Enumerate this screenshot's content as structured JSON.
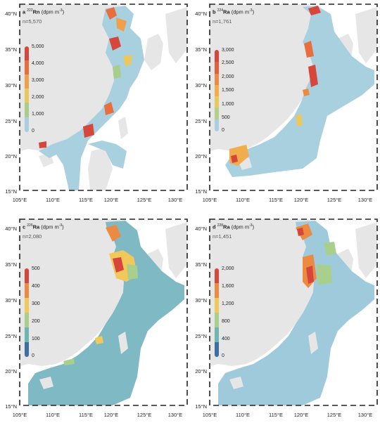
{
  "panels": [
    {
      "letter": "a",
      "isotope_mass": "222",
      "element": "Rn",
      "unit": "(dpm m",
      "unit_exp": "-3",
      "count": "n=5,570",
      "colorbar_ticks": [
        "5,000",
        "4,000",
        "3,000",
        "2,000",
        "1,000",
        "0"
      ],
      "colorbar_colors": [
        "#d7463a",
        "#e86e3e",
        "#f0a04a",
        "#e9c85f",
        "#a8ce8a",
        "#a9d0de"
      ]
    },
    {
      "letter": "b",
      "isotope_mass": "224",
      "element": "Ra",
      "unit": "(dpm m",
      "unit_exp": "-3",
      "count": "n=1,761",
      "colorbar_ticks": [
        "3,000",
        "2,500",
        "2,000",
        "1,500",
        "1,000",
        "500",
        "0"
      ],
      "colorbar_colors": [
        "#d7463a",
        "#e35e3b",
        "#ec8a41",
        "#f1ad4c",
        "#e9c85f",
        "#b3d18a",
        "#a9d0de"
      ]
    },
    {
      "letter": "c",
      "isotope_mass": "226",
      "element": "Ra",
      "unit": "(dpm m",
      "unit_exp": "-3",
      "count": "n=2,080",
      "colorbar_ticks": [
        "500",
        "400",
        "300",
        "200",
        "100",
        "0"
      ],
      "colorbar_colors": [
        "#d7463a",
        "#ec8a41",
        "#f1c85a",
        "#a8d08c",
        "#6fb6b0",
        "#3f6fa0"
      ]
    },
    {
      "letter": "d",
      "isotope_mass": "228",
      "element": "Ra",
      "unit": "(dpm m",
      "unit_exp": "-3",
      "count": "n=1,451",
      "colorbar_ticks": [
        "2,000",
        "1,600",
        "1,200",
        "800",
        "400",
        "0"
      ],
      "colorbar_colors": [
        "#d7463a",
        "#ec8a41",
        "#f1c85a",
        "#a8d08c",
        "#6fb6b0",
        "#3f6fa0"
      ]
    }
  ],
  "lat_ticks": [
    "40°N",
    "35°N",
    "30°N",
    "25°N",
    "20°N",
    "15°N"
  ],
  "lon_ticks": [
    "105°E",
    "110°E",
    "115°E",
    "120°E",
    "125°E",
    "130°E"
  ],
  "colors": {
    "land": "#e6e6e6",
    "sea_base": "#a9d0de",
    "sea_c": "#7fb9c4",
    "sea_d": "#9ecadb",
    "frame": "#222222"
  }
}
